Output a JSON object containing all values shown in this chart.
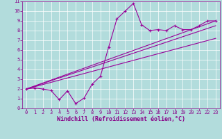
{
  "title": "",
  "xlabel": "Windchill (Refroidissement éolien,°C)",
  "ylabel": "",
  "xlim": [
    -0.5,
    23.5
  ],
  "ylim": [
    0,
    11
  ],
  "xticks": [
    0,
    1,
    2,
    3,
    4,
    5,
    6,
    7,
    8,
    9,
    10,
    11,
    12,
    13,
    14,
    15,
    16,
    17,
    18,
    19,
    20,
    21,
    22,
    23
  ],
  "yticks": [
    0,
    1,
    2,
    3,
    4,
    5,
    6,
    7,
    8,
    9,
    10,
    11
  ],
  "bg_color": "#b2dcdc",
  "grid_color": "#ffffff",
  "line_color": "#990099",
  "line1_x": [
    0,
    1,
    2,
    3,
    4,
    5,
    6,
    7,
    8,
    9,
    10,
    11,
    12,
    13,
    14,
    15,
    16,
    17,
    18,
    19,
    20,
    21,
    22,
    23
  ],
  "line1_y": [
    2.0,
    2.1,
    2.0,
    1.85,
    0.9,
    1.8,
    0.5,
    1.05,
    2.5,
    3.3,
    6.3,
    9.2,
    10.0,
    10.8,
    8.6,
    8.0,
    8.1,
    8.0,
    8.5,
    8.1,
    8.1,
    8.5,
    9.0,
    9.0
  ],
  "line2_x": [
    0,
    23
  ],
  "line2_y": [
    2.0,
    7.2
  ],
  "line3_x": [
    0,
    23
  ],
  "line3_y": [
    2.0,
    8.5
  ],
  "line4_x": [
    0,
    23
  ],
  "line4_y": [
    2.0,
    9.0
  ],
  "font_color": "#880088",
  "tick_fontsize": 5.0,
  "label_fontsize": 6.0,
  "figwidth": 3.2,
  "figheight": 2.0,
  "dpi": 100
}
